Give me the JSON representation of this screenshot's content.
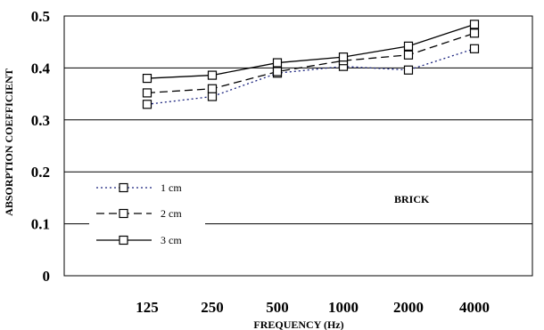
{
  "chart_data": {
    "type": "line",
    "title": "",
    "xlabel": "FREQUENCY (Hz)",
    "ylabel": "ABSORPTION COEFFICIENT",
    "categories": [
      "125",
      "250",
      "500",
      "1000",
      "2000",
      "4000"
    ],
    "ylim": [
      0,
      0.5
    ],
    "yticks": [
      "0",
      "0.1",
      "0.2",
      "0.3",
      "0.4",
      "0.5"
    ],
    "grid": "horizontal",
    "legend_position": "left",
    "annotation": "BRICK",
    "series": [
      {
        "name": "1 cm",
        "values": [
          0.33,
          0.345,
          0.39,
          0.403,
          0.396,
          0.437
        ],
        "line_style": "dotted",
        "color": "#1a237e",
        "marker": "square"
      },
      {
        "name": "2 cm",
        "values": [
          0.352,
          0.36,
          0.393,
          0.414,
          0.425,
          0.467
        ],
        "line_style": "dashed",
        "color": "#000000",
        "marker": "square"
      },
      {
        "name": "3 cm",
        "values": [
          0.38,
          0.386,
          0.41,
          0.421,
          0.442,
          0.484
        ],
        "line_style": "solid",
        "color": "#000000",
        "marker": "square"
      }
    ]
  }
}
